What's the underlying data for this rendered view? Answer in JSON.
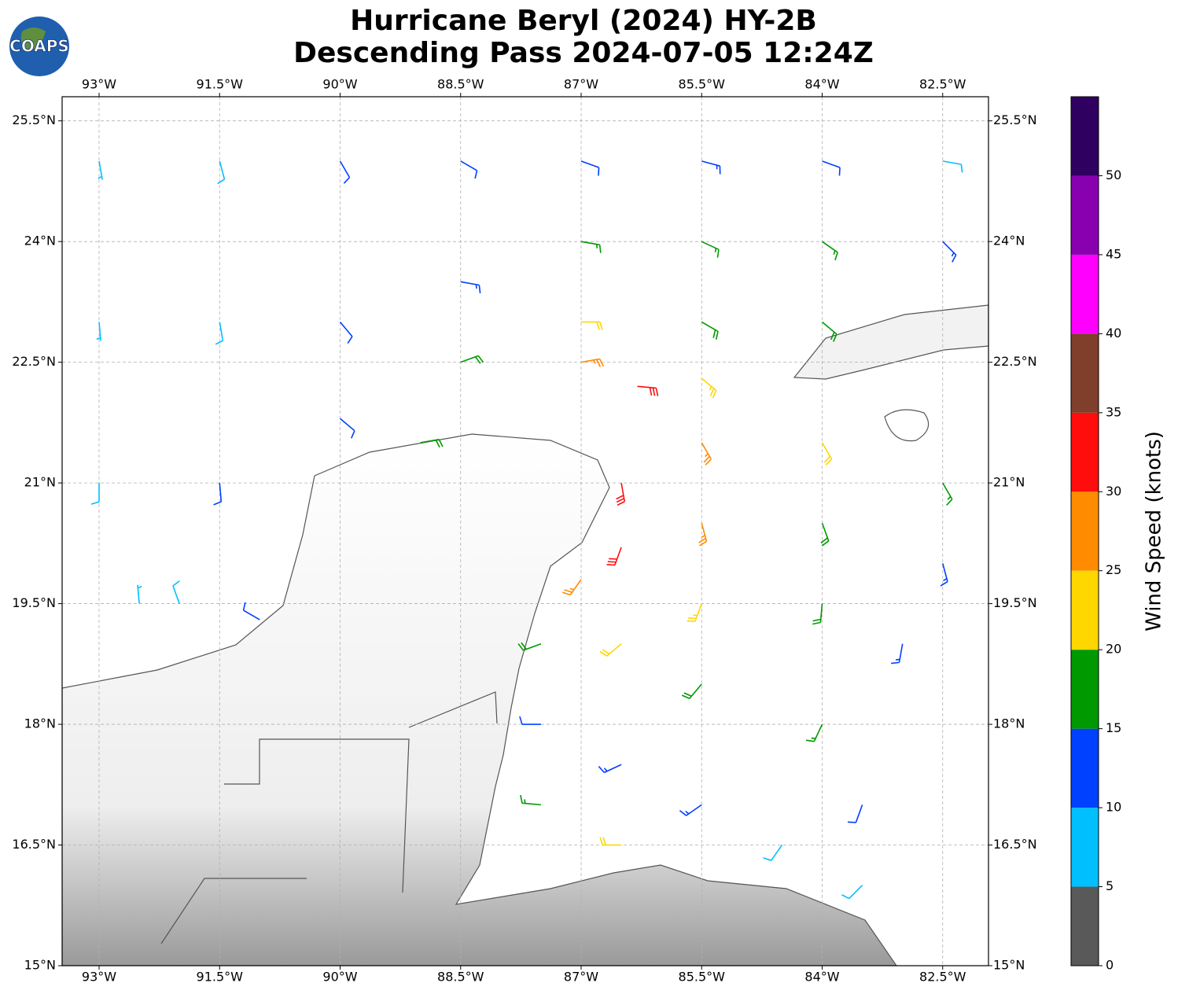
{
  "chart_data": {
    "type": "barbs",
    "logo": "COAPS",
    "title": "Hurricane Beryl (2024) HY-2B",
    "subtitle": "Descending Pass 2024-07-05 12:24Z",
    "xlim": [
      -93.46,
      -81.93
    ],
    "ylim": [
      15,
      25.8
    ],
    "xticks": [
      {
        "value": -93,
        "label": "93°W"
      },
      {
        "value": -91.5,
        "label": "91.5°W"
      },
      {
        "value": -90,
        "label": "90°W"
      },
      {
        "value": -88.5,
        "label": "88.5°W"
      },
      {
        "value": -87,
        "label": "87°W"
      },
      {
        "value": -85.5,
        "label": "85.5°W"
      },
      {
        "value": -84,
        "label": "84°W"
      },
      {
        "value": -82.5,
        "label": "82.5°W"
      }
    ],
    "yticks": [
      {
        "value": 15,
        "label": "15°N"
      },
      {
        "value": 16.5,
        "label": "16.5°N"
      },
      {
        "value": 18,
        "label": "18°N"
      },
      {
        "value": 19.5,
        "label": "19.5°N"
      },
      {
        "value": 21,
        "label": "21°N"
      },
      {
        "value": 22.5,
        "label": "22.5°N"
      },
      {
        "value": 24,
        "label": "24°N"
      },
      {
        "value": 25.5,
        "label": "25.5°N"
      }
    ],
    "grid": true,
    "colorbar": {
      "label": "Wind Speed (knots)",
      "lim": [
        0,
        55
      ],
      "ticks": [
        0,
        5,
        10,
        15,
        20,
        25,
        30,
        35,
        40,
        45,
        50
      ],
      "bounds": [
        0,
        5,
        10,
        15,
        20,
        25,
        30,
        35,
        40,
        45,
        50,
        55
      ],
      "colors": [
        "#595959",
        "#00bfff",
        "#0040ff",
        "#009900",
        "#ffd700",
        "#ff8c00",
        "#ff0d0d",
        "#7f3f2a",
        "#ff00ff",
        "#8800b0",
        "#2f0060"
      ]
    },
    "barbs": {
      "lon": [
        -93,
        -93,
        -93,
        -91.5,
        -91.5,
        -91.5,
        -90,
        -90,
        -90,
        -88.5,
        -88.5,
        -88.5,
        -87,
        -87,
        -87,
        -87,
        -86.3,
        -85.5,
        -85.5,
        -85.5,
        -85.5,
        -84,
        -84,
        -84,
        -82.5,
        -82.5,
        -85.5,
        -86.5,
        -85.5,
        -84,
        -84,
        -82.5,
        -82.5,
        -86.5,
        -85.5,
        -84,
        -83,
        -87,
        -86.5,
        -85.5,
        -84,
        -83.5,
        -87.5,
        -87.5,
        -86.5,
        -85.5,
        -84.5,
        -87.5,
        -86.5,
        -83.5,
        -92,
        -91,
        -92.5,
        -89
      ],
      "lat": [
        25,
        23,
        21,
        25,
        23,
        21,
        25,
        23,
        21.8,
        25,
        23.5,
        22.5,
        25,
        24,
        23,
        22.5,
        22.2,
        25,
        24,
        23,
        22.3,
        25,
        24,
        23,
        25,
        24,
        21.5,
        21,
        20.5,
        21.5,
        20.5,
        21,
        20,
        20.2,
        19.5,
        19.5,
        19,
        19.8,
        19,
        18.5,
        18,
        17,
        19,
        18,
        17.5,
        17,
        16.5,
        17,
        16.5,
        16,
        19.5,
        19.3,
        19.5,
        21.5
      ],
      "speed": [
        7,
        7,
        8,
        9,
        9,
        10,
        12,
        11,
        10,
        12,
        14,
        18,
        12,
        16,
        20,
        27,
        32,
        13,
        17,
        19,
        24,
        12,
        16,
        18,
        9,
        14,
        27,
        32,
        26,
        21,
        19,
        16,
        13,
        32,
        24,
        19,
        13,
        27,
        22,
        18,
        16,
        12,
        18,
        12,
        13,
        13,
        9,
        16,
        22,
        8,
        9,
        12,
        7,
        18
      ],
      "direction": [
        170,
        175,
        180,
        165,
        170,
        175,
        150,
        140,
        130,
        120,
        100,
        70,
        110,
        100,
        90,
        80,
        95,
        105,
        115,
        120,
        130,
        110,
        125,
        130,
        100,
        135,
        150,
        170,
        165,
        150,
        160,
        150,
        165,
        200,
        200,
        185,
        190,
        215,
        230,
        220,
        205,
        200,
        250,
        270,
        245,
        235,
        215,
        275,
        270,
        225,
        340,
        300,
        355,
        80
      ]
    }
  }
}
